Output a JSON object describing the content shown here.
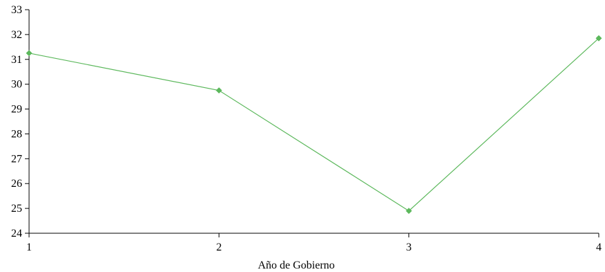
{
  "chart_data": {
    "type": "line",
    "title": "",
    "xlabel": "Año de Gobierno",
    "ylabel": "",
    "x": [
      1,
      2,
      3,
      4
    ],
    "xticks": [
      1,
      2,
      3,
      4
    ],
    "yticks": [
      24,
      25,
      26,
      27,
      28,
      29,
      30,
      31,
      32,
      33
    ],
    "ylim": [
      24,
      33
    ],
    "xlim": [
      1,
      4
    ],
    "grid": false,
    "legend": "none",
    "series": [
      {
        "values": [
          31.25,
          29.75,
          24.9,
          31.85
        ],
        "color": "#5cb85c",
        "marker": "diamond"
      }
    ]
  }
}
